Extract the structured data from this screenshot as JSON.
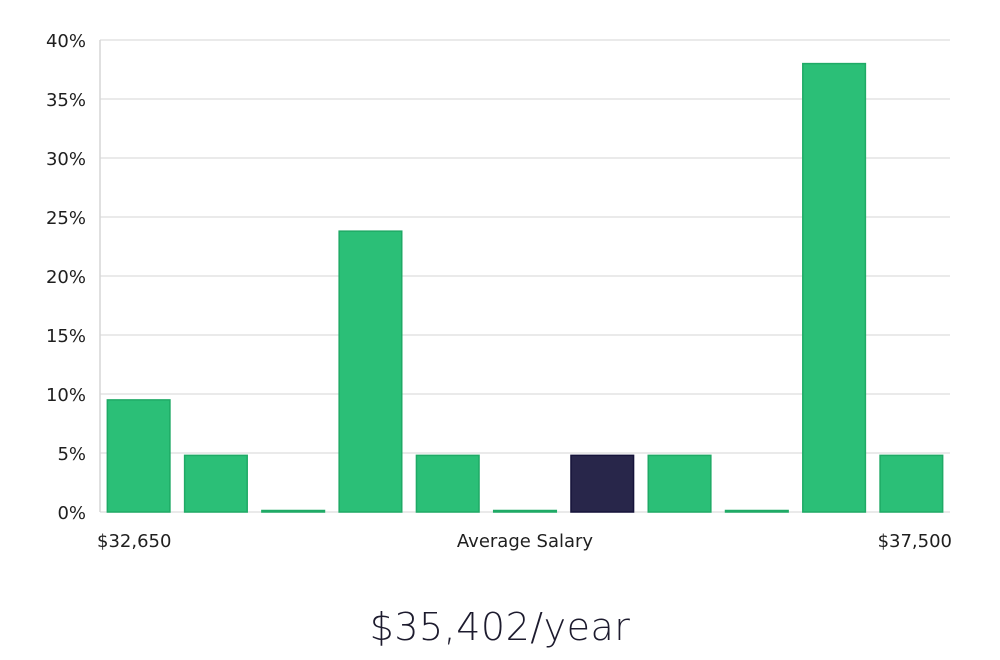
{
  "chart_data": {
    "type": "bar",
    "title": "",
    "xlabel": "Average Salary",
    "ylabel": "",
    "x_min_label": "$32,650",
    "x_max_label": "$37,500",
    "ylim": [
      0,
      40
    ],
    "y_ticks": [
      0,
      5,
      10,
      15,
      20,
      25,
      30,
      35,
      40
    ],
    "y_tick_labels": [
      "0%",
      "5%",
      "10%",
      "15%",
      "20%",
      "25%",
      "30%",
      "35%",
      "40%"
    ],
    "grid": true,
    "legend": "none",
    "values": [
      9.5,
      4.8,
      0.1,
      23.8,
      4.8,
      0.1,
      4.8,
      4.8,
      0.1,
      38.0,
      4.8
    ],
    "highlight_index": 6,
    "colors": {
      "bar": "#2bbf77",
      "bar_stroke": "#1faa66",
      "highlight": "#28264a",
      "highlight_stroke": "#15133a",
      "grid": "#e3e3e3",
      "axis": "#d6d6d6"
    }
  },
  "summary": {
    "salary": "$35,402/year"
  }
}
